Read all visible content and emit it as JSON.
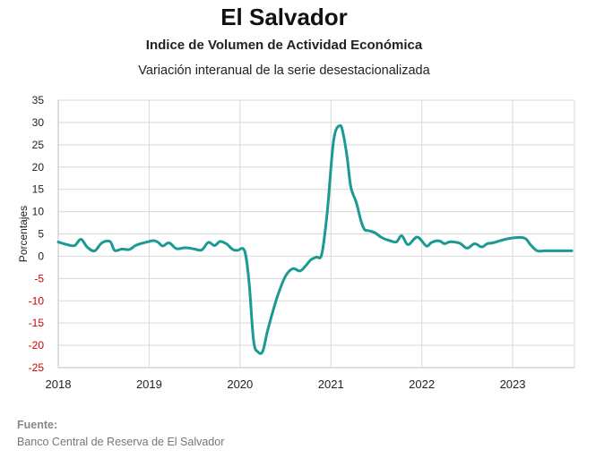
{
  "chart_data": {
    "type": "line",
    "title": "El Salvador",
    "subtitle": "Indice de Volumen de  Actividad Económica",
    "subtitle2": "Variación interanual de la serie desestacionalizada",
    "ylabel": "Porcentajes",
    "ylim": [
      -25,
      35
    ],
    "yticks": [
      "35",
      "30",
      "25",
      "20",
      "15",
      "10",
      "5",
      "0",
      "-5",
      "-10",
      "-15",
      "-20",
      "-25"
    ],
    "negative_tick_color": "#d40000",
    "xlim": [
      2018.0,
      2023.68
    ],
    "xticks": [
      "2018",
      "2019",
      "2020",
      "2021",
      "2022",
      "2023"
    ],
    "grid": true,
    "series": [
      {
        "color": "#1a9a92",
        "x": [
          2018.0,
          2018.1,
          2018.18,
          2018.25,
          2018.32,
          2018.4,
          2018.48,
          2018.57,
          2018.62,
          2018.7,
          2018.78,
          2018.85,
          2018.92,
          2019.0,
          2019.05,
          2019.1,
          2019.15,
          2019.22,
          2019.3,
          2019.4,
          2019.5,
          2019.58,
          2019.65,
          2019.72,
          2019.78,
          2019.85,
          2019.92,
          2019.97,
          2020.05,
          2020.1,
          2020.15,
          2020.2,
          2020.25,
          2020.3,
          2020.36,
          2020.42,
          2020.5,
          2020.58,
          2020.66,
          2020.72,
          2020.78,
          2020.84,
          2020.9,
          2020.96,
          2021.03,
          2021.1,
          2021.14,
          2021.18,
          2021.22,
          2021.28,
          2021.33,
          2021.37,
          2021.42,
          2021.48,
          2021.55,
          2021.6,
          2021.65,
          2021.72,
          2021.78,
          2021.85,
          2021.95,
          2022.05,
          2022.1,
          2022.15,
          2022.2,
          2022.25,
          2022.3,
          2022.35,
          2022.42,
          2022.5,
          2022.58,
          2022.66,
          2022.72,
          2022.78,
          2022.85,
          2022.92,
          2023.0,
          2023.05,
          2023.1,
          2023.15,
          2023.2,
          2023.27,
          2023.35,
          2023.42,
          2023.5,
          2023.55,
          2023.6,
          2023.65
        ],
        "y": [
          3.2,
          2.6,
          2.4,
          3.8,
          2.0,
          1.2,
          3.0,
          3.3,
          1.3,
          1.6,
          1.5,
          2.4,
          2.9,
          3.3,
          3.5,
          3.1,
          2.3,
          3.0,
          1.7,
          1.9,
          1.6,
          1.4,
          3.1,
          2.4,
          3.3,
          2.8,
          1.5,
          1.3,
          1.2,
          -6.0,
          -19.0,
          -21.5,
          -21.3,
          -17.0,
          -12.5,
          -8.5,
          -4.5,
          -2.8,
          -3.3,
          -2.2,
          -0.8,
          -0.2,
          0.5,
          10.0,
          26.0,
          29.3,
          27.0,
          22.0,
          15.5,
          12.0,
          8.0,
          6.0,
          5.7,
          5.3,
          4.3,
          3.8,
          3.5,
          3.2,
          4.6,
          2.6,
          4.3,
          2.3,
          3.0,
          3.4,
          3.4,
          2.8,
          3.2,
          3.2,
          2.9,
          1.8,
          2.8,
          2.1,
          2.8,
          3.0,
          3.4,
          3.8,
          4.1,
          4.2,
          4.2,
          3.8,
          2.5,
          1.2,
          1.2,
          1.2,
          1.2,
          1.2,
          1.2,
          1.2
        ]
      }
    ]
  },
  "source": {
    "label": "Fuente:",
    "text": "Banco Central de Reserva de El Salvador"
  }
}
